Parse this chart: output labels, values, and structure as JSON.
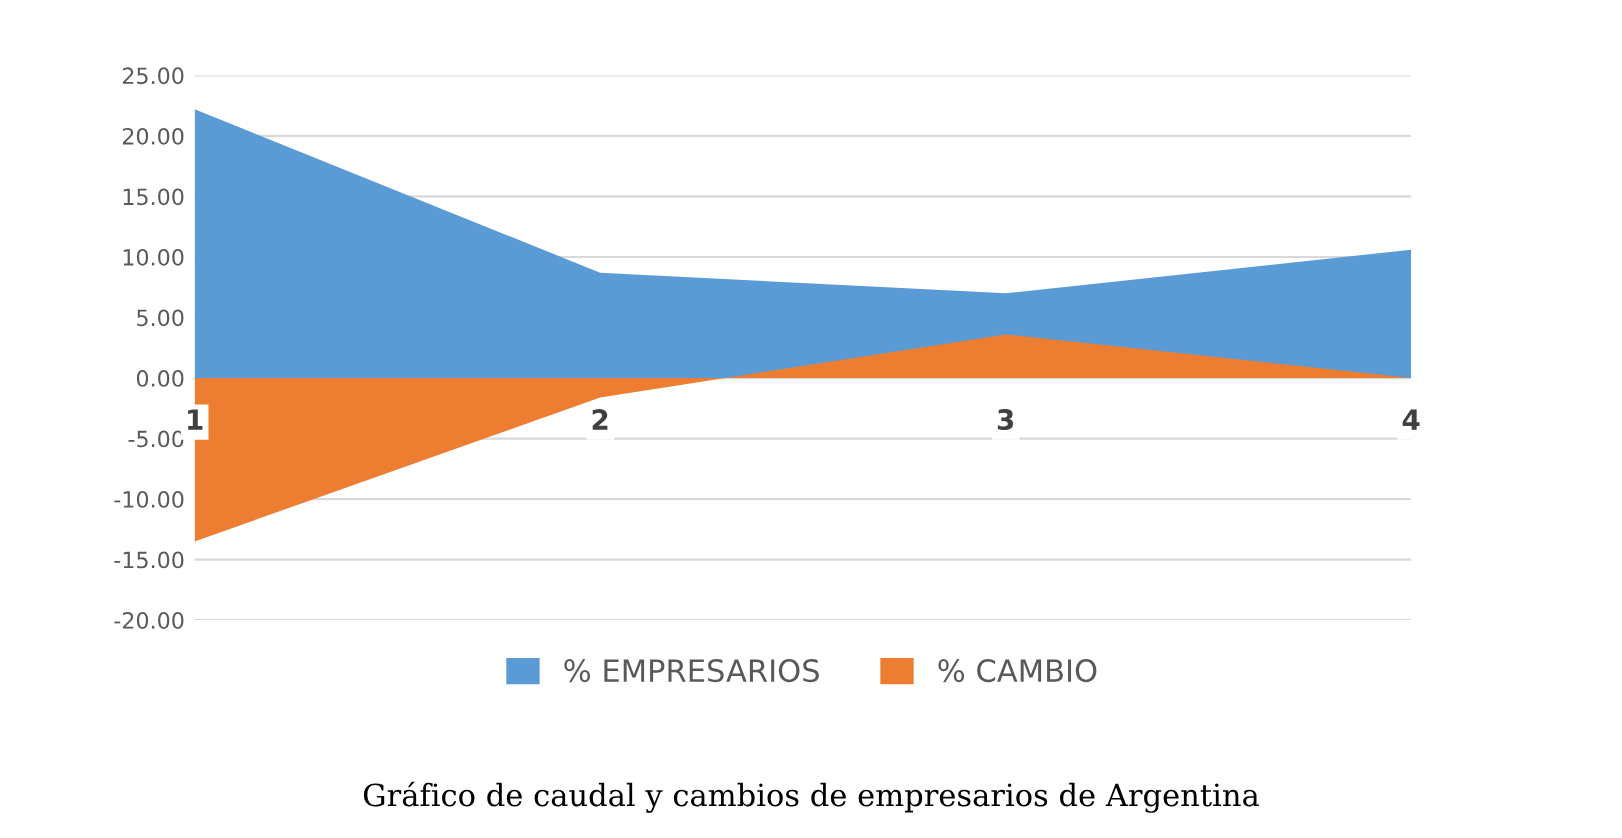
{
  "chart_data": {
    "type": "area",
    "categories": [
      "1",
      "2",
      "3",
      "4"
    ],
    "series": [
      {
        "name": "% EMPRESARIOS",
        "color": "#5b9bd5",
        "values": [
          22.2,
          8.7,
          7.0,
          10.6
        ]
      },
      {
        "name": "% CAMBIO",
        "color": "#ed7d31",
        "values": [
          -13.5,
          -1.6,
          3.6,
          0
        ]
      }
    ],
    "ylim": [
      -20,
      25
    ],
    "yticks": [
      {
        "value": -20,
        "label": "-20.00"
      },
      {
        "value": -15,
        "label": "-15.00"
      },
      {
        "value": -10,
        "label": "-10.00"
      },
      {
        "value": -5,
        "label": "-5.00"
      },
      {
        "value": 0,
        "label": "0.00"
      },
      {
        "value": 5,
        "label": "5.00"
      },
      {
        "value": 10,
        "label": "10.00"
      },
      {
        "value": 15,
        "label": "15.00"
      },
      {
        "value": 20,
        "label": "20.00"
      },
      {
        "value": 25,
        "label": "25.00"
      }
    ],
    "grid": "y",
    "legend": "bottom",
    "annotations": [
      "Gráfico de caudal y cambios de empresarios de Argentina"
    ]
  }
}
